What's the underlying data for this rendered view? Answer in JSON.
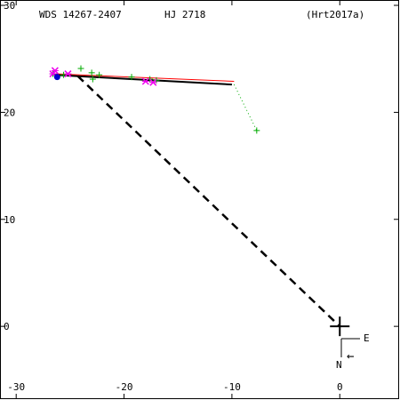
{
  "chart_data": {
    "type": "scatter",
    "header": {
      "wds": "WDS 14267-2407",
      "name": "HJ 2718",
      "reference": "(Hrt2017a)"
    },
    "x_ticks": [
      -30,
      -20,
      -10,
      0
    ],
    "y_ticks": [
      30,
      20,
      10,
      0
    ],
    "xlim": [
      -31.5,
      5.5
    ],
    "ylim": [
      -6.8,
      30.5
    ],
    "grid": false,
    "colors": {
      "axis": "#000000",
      "orbit": "#000000",
      "orbit_alt": "#ff0000",
      "observations": "#00aa00",
      "speckle": "#ee00ee",
      "highlight": "#0000cc"
    },
    "primary": {
      "x": 0,
      "y": 0
    },
    "orbit_line": [
      [
        -26.5,
        23.5
      ],
      [
        -10.0,
        22.6
      ]
    ],
    "orbit_alt_line": [
      [
        -26.5,
        23.6
      ],
      [
        -9.8,
        22.9
      ]
    ],
    "node_line": [
      [
        -24.3,
        23.4
      ],
      [
        0,
        0
      ]
    ],
    "observations": [
      [
        -26.6,
        23.6
      ],
      [
        -26.2,
        23.4
      ],
      [
        -25.6,
        23.5
      ],
      [
        -24.0,
        24.1
      ],
      [
        -23.0,
        23.7
      ],
      [
        -22.9,
        23.1
      ],
      [
        -22.3,
        23.5
      ],
      [
        -19.3,
        23.3
      ],
      [
        -17.6,
        23.1
      ],
      [
        -17.0,
        23.0
      ],
      [
        -7.7,
        18.3
      ]
    ],
    "residuals": [
      [
        [
          -9.8,
          22.6
        ],
        [
          -7.7,
          18.3
        ]
      ]
    ],
    "speckle": [
      [
        -26.4,
        23.9
      ],
      [
        -26.6,
        23.6
      ],
      [
        -25.2,
        23.6
      ],
      [
        -18.0,
        22.9
      ],
      [
        -17.3,
        22.8
      ]
    ],
    "highlighted": [
      [
        -26.2,
        23.3
      ]
    ],
    "orientation": {
      "east_label": "E",
      "north_label": "N",
      "arrow": "←"
    }
  }
}
